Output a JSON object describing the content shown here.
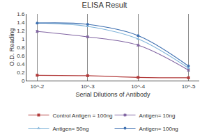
{
  "chart_data": {
    "type": "line",
    "title": "ELISA Result",
    "x_label": "Serial Dilutions of Antibody",
    "y_label": "O.D. Reading",
    "categories": [
      "10^-2",
      "10^-3",
      "10^-4",
      "10^-5"
    ],
    "series": [
      {
        "name": "Control Antigen = 100ng",
        "color": "#b23b3b",
        "marker": "square",
        "values": [
          0.13,
          0.12,
          0.08,
          0.07
        ]
      },
      {
        "name": "Antigen= 10ng",
        "color": "#8064a2",
        "marker": "x",
        "values": [
          1.18,
          1.05,
          0.85,
          0.25
        ]
      },
      {
        "name": "Antigen= 50ng",
        "color": "#7fb3d9",
        "marker": "triangle-up",
        "values": [
          1.38,
          1.3,
          1.0,
          0.3
        ]
      },
      {
        "name": "Antigen= 100ng",
        "color": "#3d6fb0",
        "marker": "circle",
        "values": [
          1.38,
          1.35,
          1.08,
          0.35
        ]
      }
    ],
    "ylim": [
      0,
      1.6
    ],
    "yticks": [
      0,
      0.2,
      0.4,
      0.6,
      0.8,
      1,
      1.2,
      1.4,
      1.6
    ],
    "grid": true,
    "legend": "bottom"
  }
}
